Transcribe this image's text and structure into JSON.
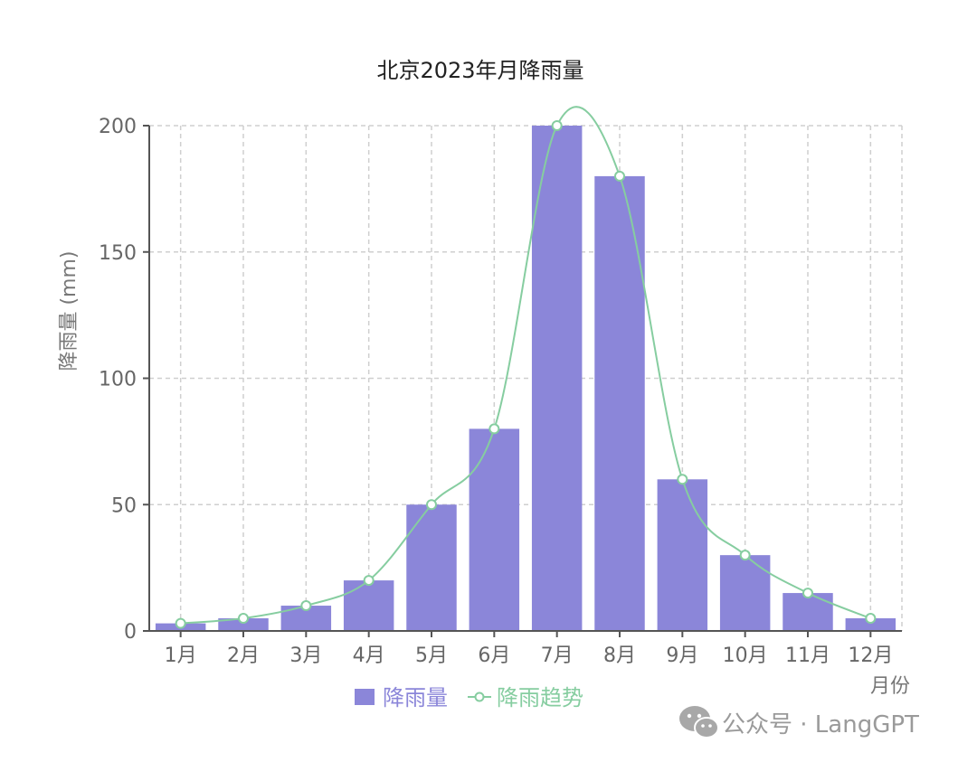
{
  "chart_data": {
    "type": "bar",
    "title": "北京2023年月降雨量",
    "ylabel": "降雨量 (mm)",
    "xlabel": "月份",
    "categories": [
      "1月",
      "2月",
      "3月",
      "4月",
      "5月",
      "6月",
      "7月",
      "8月",
      "9月",
      "10月",
      "11月",
      "12月"
    ],
    "ylim": [
      0,
      200
    ],
    "yticks": [
      0,
      50,
      100,
      150,
      200
    ],
    "grid": true,
    "legend_position": "bottom",
    "series": [
      {
        "name": "降雨量",
        "type": "bar",
        "color": "#8b86d9",
        "values": [
          3,
          5,
          10,
          20,
          50,
          80,
          200,
          180,
          60,
          30,
          15,
          5
        ]
      },
      {
        "name": "降雨趋势",
        "type": "line",
        "smooth": true,
        "color": "#86cda0",
        "values": [
          3,
          5,
          10,
          20,
          50,
          80,
          200,
          180,
          60,
          30,
          15,
          5
        ]
      }
    ]
  },
  "watermark": {
    "text": "公众号 · LangGPT",
    "icon": "wechat-icon"
  }
}
